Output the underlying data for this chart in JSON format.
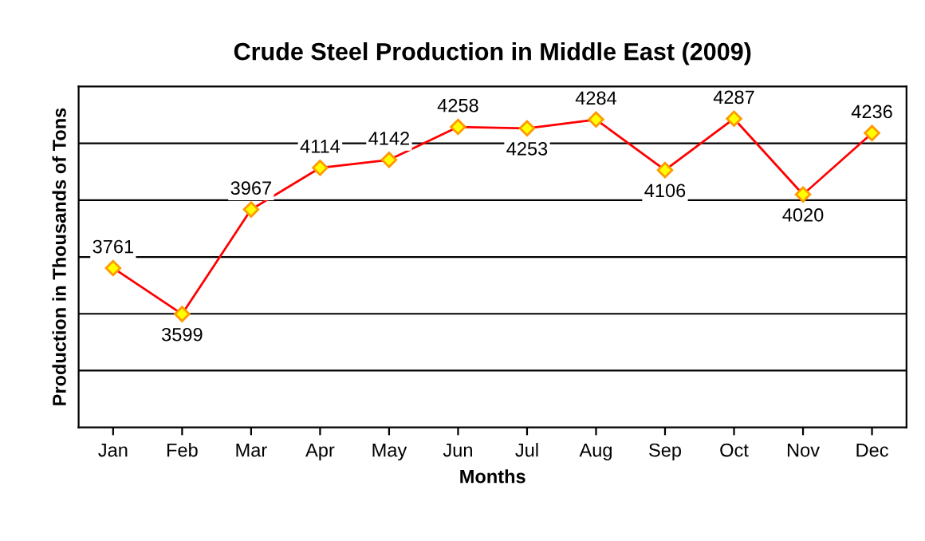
{
  "chart_data": {
    "type": "line",
    "title": "Crude Steel Production in Middle East (2009)",
    "xlabel": "Months",
    "ylabel": "Production in Thousands of Tons",
    "categories": [
      "Jan",
      "Feb",
      "Mar",
      "Apr",
      "May",
      "Jun",
      "Jul",
      "Aug",
      "Sep",
      "Oct",
      "Nov",
      "Dec"
    ],
    "series": [
      {
        "color": "#ff0000",
        "values": [
          3761,
          3599,
          3967,
          4114,
          4142,
          4258,
          4253,
          4284,
          4106,
          4287,
          4020,
          4236
        ]
      }
    ],
    "ylim": [
      3200,
      4400
    ],
    "yticks": [
      {
        "value": 3400,
        "label": null
      },
      {
        "value": 3600,
        "label": null
      },
      {
        "value": 3800,
        "label": null
      },
      {
        "value": 4000,
        "label": null
      },
      {
        "value": 4200,
        "label": null
      }
    ],
    "tick_labels": "x",
    "grid": "y",
    "marker": "diamond",
    "line_style": "solid",
    "data_labels": true,
    "legend": false
  }
}
